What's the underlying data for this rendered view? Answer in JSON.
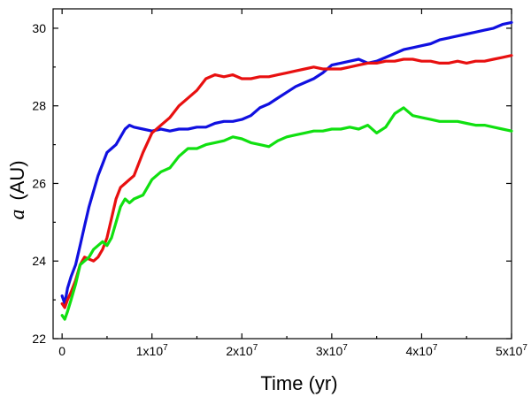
{
  "chart_data": {
    "type": "line",
    "xlabel": "Time (yr)",
    "ylabel_symbol": "a",
    "ylabel_unit": "(AU)",
    "xlim": [
      -1000000,
      50000000
    ],
    "ylim": [
      22,
      30.5
    ],
    "grid": false,
    "legend": "none",
    "x_ticks": [
      {
        "value": 0,
        "label": "0",
        "exp": ""
      },
      {
        "value": 10000000,
        "label": "1x10",
        "exp": "7"
      },
      {
        "value": 20000000,
        "label": "2x10",
        "exp": "7"
      },
      {
        "value": 30000000,
        "label": "3x10",
        "exp": "7"
      },
      {
        "value": 40000000,
        "label": "4x10",
        "exp": "7"
      },
      {
        "value": 50000000,
        "label": "5x10",
        "exp": "7"
      }
    ],
    "y_ticks": [
      {
        "value": 22,
        "label": "22"
      },
      {
        "value": 24,
        "label": "24"
      },
      {
        "value": 26,
        "label": "26"
      },
      {
        "value": 28,
        "label": "28"
      },
      {
        "value": 30,
        "label": "30"
      }
    ],
    "series": [
      {
        "color": "#1010e0",
        "x": [
          0,
          300000,
          600000,
          1000000,
          1500000,
          2000000,
          2500000,
          3000000,
          3500000,
          4000000,
          4500000,
          5000000,
          5500000,
          6000000,
          6500000,
          7000000,
          7500000,
          8000000,
          9000000,
          10000000,
          11000000,
          12000000,
          13000000,
          14000000,
          15000000,
          16000000,
          17000000,
          18000000,
          19000000,
          20000000,
          21000000,
          22000000,
          23000000,
          24000000,
          25000000,
          26000000,
          27000000,
          28000000,
          29000000,
          30000000,
          31000000,
          32000000,
          33000000,
          34000000,
          35000000,
          36000000,
          37000000,
          38000000,
          39000000,
          40000000,
          41000000,
          42000000,
          43000000,
          44000000,
          45000000,
          46000000,
          47000000,
          48000000,
          49000000,
          50000000
        ],
        "y": [
          23.1,
          22.9,
          23.3,
          23.6,
          23.9,
          24.4,
          24.9,
          25.4,
          25.8,
          26.2,
          26.5,
          26.8,
          26.9,
          27.0,
          27.2,
          27.4,
          27.5,
          27.45,
          27.4,
          27.35,
          27.4,
          27.35,
          27.4,
          27.4,
          27.45,
          27.45,
          27.55,
          27.6,
          27.6,
          27.65,
          27.75,
          27.95,
          28.05,
          28.2,
          28.35,
          28.5,
          28.6,
          28.7,
          28.85,
          29.05,
          29.1,
          29.15,
          29.2,
          29.1,
          29.15,
          29.25,
          29.35,
          29.45,
          29.5,
          29.55,
          29.6,
          29.7,
          29.75,
          29.8,
          29.85,
          29.9,
          29.95,
          30.0,
          30.1,
          30.15
        ]
      },
      {
        "color": "#e81010",
        "x": [
          0,
          300000,
          600000,
          1000000,
          1500000,
          2000000,
          2500000,
          3000000,
          3500000,
          4000000,
          4500000,
          5000000,
          5500000,
          6000000,
          6500000,
          7000000,
          7500000,
          8000000,
          9000000,
          10000000,
          11000000,
          12000000,
          13000000,
          14000000,
          15000000,
          16000000,
          17000000,
          18000000,
          19000000,
          20000000,
          21000000,
          22000000,
          23000000,
          24000000,
          25000000,
          26000000,
          27000000,
          28000000,
          29000000,
          30000000,
          31000000,
          32000000,
          33000000,
          34000000,
          35000000,
          36000000,
          37000000,
          38000000,
          39000000,
          40000000,
          41000000,
          42000000,
          43000000,
          44000000,
          45000000,
          46000000,
          47000000,
          48000000,
          49000000,
          50000000
        ],
        "y": [
          22.9,
          22.8,
          23.0,
          23.2,
          23.5,
          23.9,
          24.1,
          24.05,
          24.0,
          24.1,
          24.3,
          24.6,
          25.1,
          25.6,
          25.9,
          26.0,
          26.1,
          26.2,
          26.8,
          27.3,
          27.5,
          27.7,
          28.0,
          28.2,
          28.4,
          28.7,
          28.8,
          28.75,
          28.8,
          28.7,
          28.7,
          28.75,
          28.75,
          28.8,
          28.85,
          28.9,
          28.95,
          29.0,
          28.95,
          28.95,
          28.95,
          29.0,
          29.05,
          29.1,
          29.1,
          29.15,
          29.15,
          29.2,
          29.2,
          29.15,
          29.15,
          29.1,
          29.1,
          29.15,
          29.1,
          29.15,
          29.15,
          29.2,
          29.25,
          29.3
        ]
      },
      {
        "color": "#10e010",
        "x": [
          0,
          300000,
          600000,
          1000000,
          1500000,
          2000000,
          2500000,
          3000000,
          3500000,
          4000000,
          4500000,
          5000000,
          5500000,
          6000000,
          6500000,
          7000000,
          7500000,
          8000000,
          9000000,
          10000000,
          11000000,
          12000000,
          13000000,
          14000000,
          15000000,
          16000000,
          17000000,
          18000000,
          19000000,
          20000000,
          21000000,
          22000000,
          23000000,
          24000000,
          25000000,
          26000000,
          27000000,
          28000000,
          29000000,
          30000000,
          31000000,
          32000000,
          33000000,
          34000000,
          35000000,
          36000000,
          37000000,
          38000000,
          39000000,
          40000000,
          41000000,
          42000000,
          43000000,
          44000000,
          45000000,
          46000000,
          47000000,
          48000000,
          49000000,
          50000000
        ],
        "y": [
          22.6,
          22.5,
          22.7,
          23.0,
          23.4,
          23.9,
          24.0,
          24.1,
          24.3,
          24.4,
          24.5,
          24.4,
          24.6,
          25.0,
          25.4,
          25.6,
          25.5,
          25.6,
          25.7,
          26.1,
          26.3,
          26.4,
          26.7,
          26.9,
          26.9,
          27.0,
          27.05,
          27.1,
          27.2,
          27.15,
          27.05,
          27.0,
          26.95,
          27.1,
          27.2,
          27.25,
          27.3,
          27.35,
          27.35,
          27.4,
          27.4,
          27.45,
          27.4,
          27.5,
          27.3,
          27.45,
          27.8,
          27.95,
          27.75,
          27.7,
          27.65,
          27.6,
          27.6,
          27.6,
          27.55,
          27.5,
          27.5,
          27.45,
          27.4,
          27.35
        ]
      }
    ]
  }
}
